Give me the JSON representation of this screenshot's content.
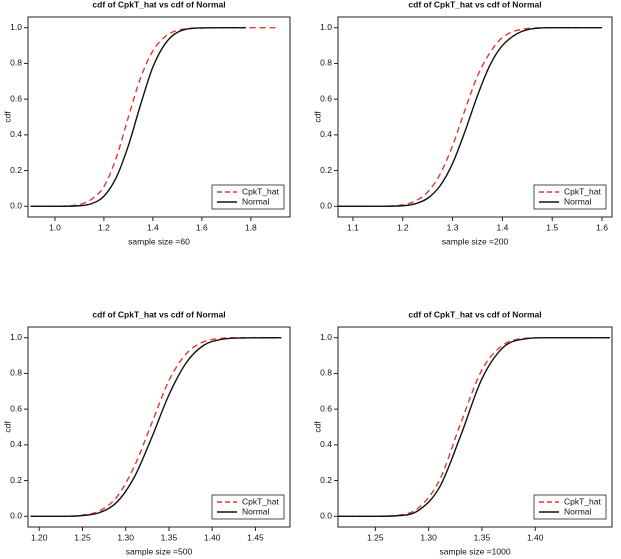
{
  "chart_data": [
    {
      "type": "line",
      "title": "cdf of CpkT_hat vs cdf of Normal",
      "x_label": "sample size =60",
      "y_label": "cdf",
      "x": [
        0.9,
        1.0,
        1.1,
        1.15,
        1.2,
        1.25,
        1.3,
        1.35,
        1.4,
        1.45,
        1.5,
        1.6,
        1.7,
        1.78,
        1.9
      ],
      "series": [
        {
          "name": "CpkT_hat",
          "color": "#e8362d",
          "line_style": "dashed",
          "values": [
            0,
            0,
            0.01,
            0.04,
            0.11,
            0.27,
            0.5,
            0.72,
            0.87,
            0.95,
            0.985,
            0.998,
            1,
            1,
            1
          ]
        },
        {
          "name": "Normal",
          "color": "#111111",
          "line_style": "solid",
          "values": [
            0,
            0,
            0.003,
            0.015,
            0.056,
            0.16,
            0.34,
            0.57,
            0.78,
            0.91,
            0.974,
            0.999,
            1,
            1,
            null
          ]
        }
      ],
      "xlim": [
        0.89,
        1.96
      ],
      "ylim": [
        -0.06,
        1.06
      ],
      "xticks": [
        {
          "value": 1,
          "label": "1.0"
        },
        1.2,
        1.4,
        1.6,
        1.8
      ],
      "yticks": [
        {
          "value": 0,
          "label": "0.0"
        },
        0.2,
        0.4,
        0.6,
        0.8,
        {
          "value": 1,
          "label": "1.0"
        }
      ],
      "legend": "lower right"
    },
    {
      "type": "line",
      "title": "cdf of CpkT_hat vs cdf of Normal",
      "x_label": "sample size =200",
      "y_label": "cdf",
      "x": [
        1.07,
        1.15,
        1.2,
        1.225,
        1.25,
        1.275,
        1.3,
        1.325,
        1.35,
        1.375,
        1.4,
        1.45,
        1.5,
        1.6
      ],
      "series": [
        {
          "name": "CpkT_hat",
          "color": "#e8362d",
          "line_style": "dashed",
          "values": [
            0,
            0,
            0.008,
            0.029,
            0.08,
            0.18,
            0.34,
            0.54,
            0.73,
            0.86,
            0.945,
            0.995,
            1,
            1
          ]
        },
        {
          "name": "Normal",
          "color": "#111111",
          "line_style": "solid",
          "values": [
            0,
            0,
            0.003,
            0.014,
            0.045,
            0.115,
            0.24,
            0.42,
            0.62,
            0.79,
            0.9,
            0.989,
            1,
            1
          ]
        }
      ],
      "xlim": [
        1.07,
        1.62
      ],
      "ylim": [
        -0.06,
        1.06
      ],
      "xticks": [
        1.1,
        1.2,
        1.3,
        1.4,
        1.5,
        1.6
      ],
      "yticks": [
        {
          "value": 0,
          "label": "0.0"
        },
        0.2,
        0.4,
        0.6,
        0.8,
        {
          "value": 1,
          "label": "1.0"
        }
      ],
      "legend": "lower right"
    },
    {
      "type": "line",
      "title": "cdf of CpkT_hat vs cdf of Normal",
      "x_label": "sample size =500",
      "y_label": "cdf",
      "x": [
        1.19,
        1.23,
        1.25,
        1.27,
        1.29,
        1.31,
        1.33,
        1.35,
        1.37,
        1.39,
        1.41,
        1.43,
        1.48
      ],
      "series": [
        {
          "name": "CpkT_hat",
          "color": "#e8362d",
          "line_style": "dashed",
          "values": [
            0,
            0,
            0.006,
            0.031,
            0.11,
            0.28,
            0.52,
            0.76,
            0.91,
            0.977,
            0.996,
            1,
            1
          ]
        },
        {
          "name": "Normal",
          "color": "#111111",
          "line_style": "solid",
          "values": [
            0,
            0,
            0.004,
            0.021,
            0.08,
            0.22,
            0.44,
            0.68,
            0.86,
            0.957,
            0.99,
            0.998,
            1
          ]
        }
      ],
      "xlim": [
        1.187,
        1.49
      ],
      "ylim": [
        -0.06,
        1.06
      ],
      "xticks": [
        {
          "value": 1.2,
          "label": "1.20"
        },
        1.25,
        {
          "value": 1.3,
          "label": "1.30"
        },
        1.35,
        {
          "value": 1.4,
          "label": "1.40"
        },
        1.45
      ],
      "yticks": [
        {
          "value": 0,
          "label": "0.0"
        },
        0.2,
        0.4,
        0.6,
        0.8,
        {
          "value": 1,
          "label": "1.0"
        }
      ],
      "legend": "lower right"
    },
    {
      "type": "line",
      "title": "cdf of CpkT_hat vs cdf of Normal",
      "x_label": "sample size =1000",
      "y_label": "cdf",
      "x": [
        1.215,
        1.25,
        1.27,
        1.29,
        1.31,
        1.33,
        1.35,
        1.37,
        1.39,
        1.41,
        1.47
      ],
      "series": [
        {
          "name": "CpkT_hat",
          "color": "#e8362d",
          "line_style": "dashed",
          "values": [
            0,
            0,
            0.005,
            0.045,
            0.2,
            0.52,
            0.82,
            0.96,
            0.996,
            1,
            1
          ]
        },
        {
          "name": "Normal",
          "color": "#111111",
          "line_style": "solid",
          "values": [
            0,
            0,
            0.003,
            0.031,
            0.16,
            0.45,
            0.77,
            0.946,
            0.993,
            1,
            1
          ]
        }
      ],
      "xlim": [
        1.215,
        1.472
      ],
      "ylim": [
        -0.06,
        1.06
      ],
      "xticks": [
        1.25,
        {
          "value": 1.3,
          "label": "1.30"
        },
        1.35,
        {
          "value": 1.4,
          "label": "1.40"
        }
      ],
      "yticks": [
        {
          "value": 0,
          "label": "0.0"
        },
        0.2,
        0.4,
        0.6,
        0.8,
        {
          "value": 1,
          "label": "1.0"
        }
      ],
      "legend": "lower right"
    }
  ]
}
